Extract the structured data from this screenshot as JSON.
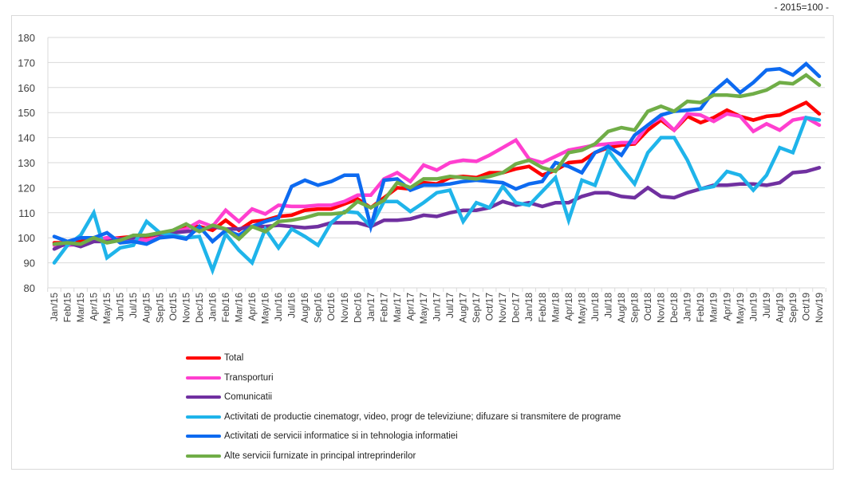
{
  "subtitle": "- 2015=100 -",
  "chart_data": {
    "type": "line",
    "title": "",
    "subtitle": "- 2015=100 -",
    "xlabel": "",
    "ylabel": "",
    "ylim": [
      80,
      180
    ],
    "yticks": [
      80,
      90,
      100,
      110,
      120,
      130,
      140,
      150,
      160,
      170,
      180
    ],
    "grid": true,
    "legend_position": "bottom",
    "categories": [
      "Jan/15",
      "Feb/15",
      "Mar/15",
      "Apr/15",
      "May/15",
      "Jun/15",
      "Jul/15",
      "Aug/15",
      "Sep/15",
      "Oct/15",
      "Nov/15",
      "Dec/15",
      "Jan/16",
      "Feb/16",
      "Mar/16",
      "Apr/16",
      "May/16",
      "Jun/16",
      "Jul/16",
      "Aug/16",
      "Sep/16",
      "Oct/16",
      "Nov/16",
      "Dec/16",
      "Jan/17",
      "Feb/17",
      "Mar/17",
      "Apr/17",
      "May/17",
      "Jun/17",
      "Jul/17",
      "Aug/17",
      "Sep/17",
      "Oct/17",
      "Nov/17",
      "Dec/17",
      "Jan/18",
      "Feb/18",
      "Mar/18",
      "Apr/18",
      "May/18",
      "Jun/18",
      "Jul/18",
      "Aug/18",
      "Sep/18",
      "Oct/18",
      "Nov/18",
      "Dec/18",
      "Jan/19",
      "Feb/19",
      "Mar/19",
      "Apr/19",
      "May/19",
      "Jun/19",
      "Jul/19",
      "Aug/19",
      "Sep/19",
      "Oct/19",
      "Nov/19"
    ],
    "series": [
      {
        "name": "Total",
        "color": "#ff0000",
        "values": [
          98,
          98,
          98.5,
          99,
          99.5,
          100,
          100.5,
          100.5,
          101.5,
          102,
          104.5,
          104.5,
          103,
          107,
          103,
          106.5,
          107,
          108.5,
          109,
          111,
          111.5,
          111.5,
          113.5,
          115.5,
          112,
          116,
          120,
          119.5,
          122,
          121.5,
          124,
          124.5,
          124,
          126,
          126,
          127.5,
          128.5,
          125,
          127,
          130,
          130.5,
          134,
          136,
          137,
          137.5,
          143,
          147,
          143,
          148.5,
          146,
          148,
          151,
          148.5,
          147,
          148.5,
          149,
          151.5,
          154,
          149.5
        ]
      },
      {
        "name": "Transporturi",
        "color": "#ff3fcf",
        "values": [
          97,
          97,
          97.5,
          99,
          100,
          99.5,
          99.5,
          99,
          100,
          102,
          103.5,
          106.5,
          104.5,
          111,
          106.5,
          111.5,
          109.5,
          113,
          112.5,
          112.5,
          113,
          113,
          114.5,
          117,
          117,
          123.5,
          126,
          122.5,
          129,
          127,
          130,
          131,
          130.5,
          133,
          136,
          139,
          131.5,
          130,
          132.5,
          135,
          136,
          137,
          137.5,
          138,
          138,
          145,
          148,
          143,
          149.5,
          149,
          146.5,
          149.5,
          148.5,
          142.5,
          145.5,
          143,
          147,
          148,
          145
        ]
      },
      {
        "name": "Comunicatii",
        "color": "#7030a0",
        "values": [
          95.5,
          98,
          96.5,
          98.5,
          98.5,
          99.5,
          100,
          101,
          101.5,
          102,
          102.5,
          103,
          104.5,
          103.5,
          103.5,
          104.5,
          104.5,
          105,
          104.5,
          104,
          104.5,
          106,
          106,
          106,
          104.5,
          107,
          107,
          107.5,
          109,
          108.5,
          110,
          111,
          111,
          112,
          114.5,
          113,
          114,
          112.5,
          114,
          114,
          116.5,
          118,
          118,
          116.5,
          116,
          120,
          116.5,
          116,
          118,
          119.5,
          121,
          121,
          121.5,
          121.5,
          121,
          122,
          126,
          126.5,
          128
        ]
      },
      {
        "name": "Activitati de productie cinematogr, video, progr de televiziune; difuzare si transmitere de programe",
        "color": "#1fb4ea",
        "values": [
          90,
          97,
          101,
          110,
          92,
          96,
          97,
          106.5,
          102,
          101,
          100,
          100.5,
          87,
          101.5,
          95,
          90,
          103.5,
          96,
          103.5,
          100.5,
          97,
          106,
          110.5,
          110,
          104.5,
          114.5,
          114.5,
          110.5,
          114,
          118,
          119,
          106.5,
          114,
          112,
          120.5,
          114,
          113,
          118.5,
          124,
          107,
          123,
          121,
          135,
          128,
          121.5,
          134,
          140,
          140,
          131,
          119.5,
          120.5,
          126.5,
          125,
          119,
          125,
          136,
          134,
          148,
          147
        ]
      },
      {
        "name": "Activitati de servicii informatice si in tehnologia informatiei",
        "color": "#0d6af0",
        "values": [
          100.5,
          98.5,
          100,
          100,
          102,
          98,
          98.5,
          97.5,
          100,
          100.5,
          99.5,
          104.5,
          98.5,
          103,
          101,
          104.5,
          106.5,
          108,
          120.5,
          123,
          121,
          122.5,
          125,
          125,
          104.5,
          123,
          123.5,
          119,
          121,
          121,
          121.5,
          122.5,
          123,
          122.5,
          122,
          119.5,
          121.5,
          122.5,
          130,
          128.5,
          126,
          134,
          136.5,
          133,
          141,
          145,
          149,
          150.5,
          151,
          151.5,
          158.5,
          163,
          158,
          162,
          167,
          167.5,
          165,
          169.5,
          164.5
        ]
      },
      {
        "name": "Alte servicii furnizate in principal intreprinderilor",
        "color": "#70ad47",
        "values": [
          97.5,
          98,
          97.5,
          100,
          98,
          99,
          101,
          101,
          102,
          103,
          105.5,
          102.5,
          105,
          103.5,
          99.5,
          104.5,
          102.5,
          106.5,
          107,
          108,
          109.5,
          109.5,
          110,
          114.5,
          112,
          115,
          122,
          120,
          123.5,
          123.5,
          124.5,
          124,
          123.5,
          124.5,
          126,
          129.5,
          131,
          128,
          126.5,
          134,
          135,
          137.5,
          142.5,
          144,
          143,
          150.5,
          152.5,
          150.5,
          154.5,
          154,
          157,
          157,
          156.5,
          157.5,
          159,
          162,
          161.5,
          165,
          161
        ]
      }
    ]
  },
  "legend": [
    {
      "label": "Total",
      "color": "#ff0000"
    },
    {
      "label": "Transporturi",
      "color": "#ff3fcf"
    },
    {
      "label": "Comunicatii",
      "color": "#7030a0"
    },
    {
      "label": "Activitati de productie cinematogr, video, progr de televiziune; difuzare si transmitere de programe",
      "color": "#1fb4ea"
    },
    {
      "label": "Activitati de servicii informatice si in tehnologia informatiei",
      "color": "#0d6af0"
    },
    {
      "label": "Alte servicii furnizate in principal intreprinderilor",
      "color": "#70ad47"
    }
  ]
}
